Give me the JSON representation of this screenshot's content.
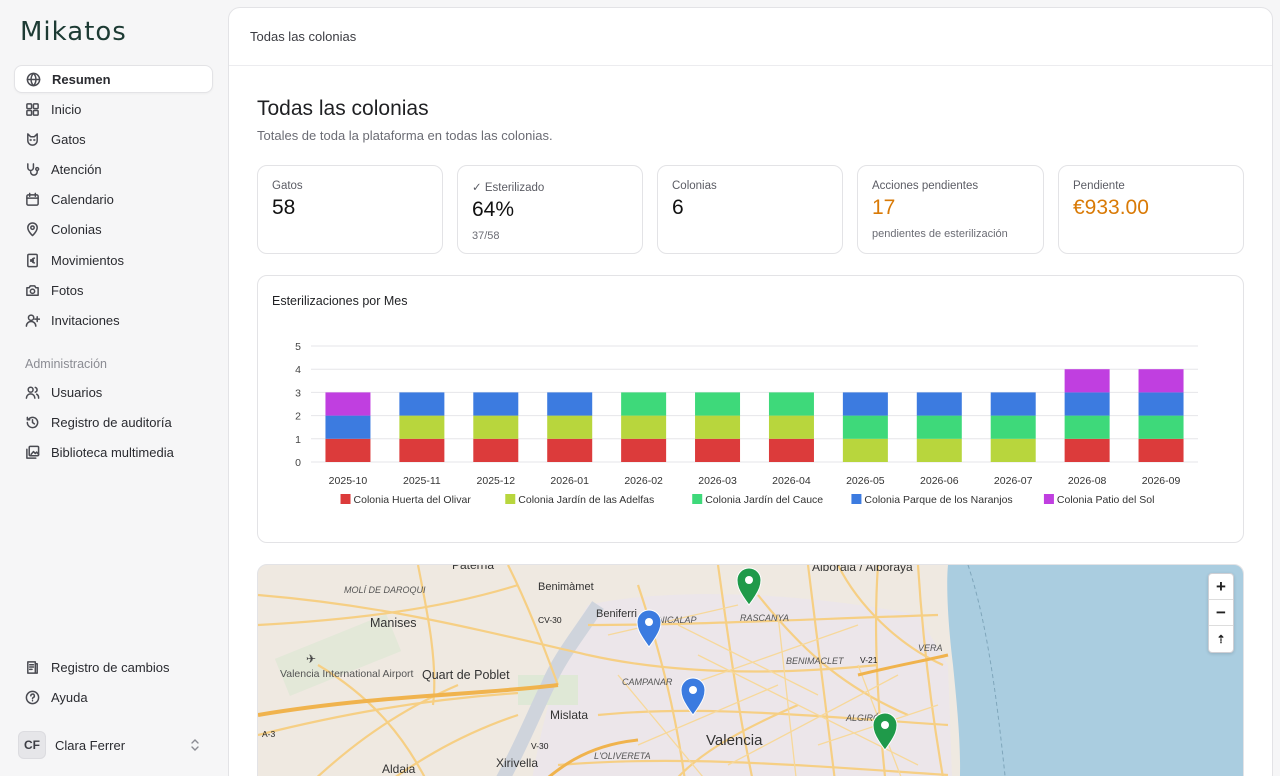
{
  "app": {
    "logo": "Mikatos",
    "breadcrumb": "Todas las colonias"
  },
  "sidebar": {
    "items": [
      {
        "label": "Resumen",
        "icon": "globe-icon",
        "active": true
      },
      {
        "label": "Inicio",
        "icon": "grid-icon"
      },
      {
        "label": "Gatos",
        "icon": "cat-icon"
      },
      {
        "label": "Atención",
        "icon": "stethoscope-icon"
      },
      {
        "label": "Calendario",
        "icon": "calendar-icon"
      },
      {
        "label": "Colonias",
        "icon": "map-pin-icon"
      },
      {
        "label": "Movimientos",
        "icon": "euro-receipt-icon"
      },
      {
        "label": "Fotos",
        "icon": "camera-icon"
      },
      {
        "label": "Invitaciones",
        "icon": "user-plus-icon"
      }
    ],
    "admin_label": "Administración",
    "admin_items": [
      {
        "label": "Usuarios",
        "icon": "users-icon"
      },
      {
        "label": "Registro de auditoría",
        "icon": "history-icon"
      },
      {
        "label": "Biblioteca multimedia",
        "icon": "images-icon"
      }
    ],
    "bottom_items": [
      {
        "label": "Registro de cambios",
        "icon": "changelog-icon"
      },
      {
        "label": "Ayuda",
        "icon": "help-icon"
      }
    ],
    "user": {
      "initials": "CF",
      "name": "Clara Ferrer"
    }
  },
  "page": {
    "title": "Todas las colonias",
    "subtitle": "Totales de toda la plataforma en todas las colonias."
  },
  "stats": [
    {
      "label": "Gatos",
      "value": "58",
      "sub": ""
    },
    {
      "label": "✓ Esterilizado",
      "value": "64%",
      "sub": "37/58"
    },
    {
      "label": "Colonias",
      "value": "6",
      "sub": ""
    },
    {
      "label": "Acciones pendientes",
      "value": "17",
      "sub": "pendientes de esterilización",
      "accent": "#d97a06"
    },
    {
      "label": "Pendiente",
      "value": "€933.00",
      "sub": "",
      "accent": "#d97a06"
    }
  ],
  "chart_data": {
    "type": "bar",
    "stacked": true,
    "title": "Esterilizaciones por Mes",
    "categories": [
      "2025-10",
      "2025-11",
      "2025-12",
      "2026-01",
      "2026-02",
      "2026-03",
      "2026-04",
      "2026-05",
      "2026-06",
      "2026-07",
      "2026-08",
      "2026-09"
    ],
    "ylim": [
      0,
      5
    ],
    "yticks": [
      0,
      1,
      2,
      3,
      4,
      5
    ],
    "grid": true,
    "legend_position": "bottom",
    "series": [
      {
        "name": "Colonia Huerta del Olivar",
        "color": "#dc3b3b",
        "values": [
          1,
          1,
          1,
          1,
          1,
          1,
          1,
          0,
          0,
          0,
          1,
          1
        ]
      },
      {
        "name": "Colonia Jardín de las Adelfas",
        "color": "#b8d63d",
        "values": [
          0,
          1,
          1,
          1,
          1,
          1,
          1,
          1,
          1,
          1,
          0,
          0
        ]
      },
      {
        "name": "Colonia Jardín del Cauce",
        "color": "#3ed97a",
        "values": [
          0,
          0,
          0,
          0,
          1,
          1,
          1,
          1,
          1,
          1,
          1,
          1
        ]
      },
      {
        "name": "Colonia Parque de los Naranjos",
        "color": "#3c7be0",
        "values": [
          1,
          1,
          1,
          1,
          0,
          0,
          0,
          1,
          1,
          1,
          1,
          1
        ]
      },
      {
        "name": "Colonia Patio del Sol",
        "color": "#c03fe0",
        "values": [
          1,
          0,
          0,
          0,
          0,
          0,
          0,
          0,
          0,
          0,
          1,
          1
        ]
      }
    ]
  },
  "map": {
    "labels": [
      "Paterna",
      "Benimàmet",
      "Alboraia / Alboraya",
      "MOLÍ DE DAROQUI",
      "Manises",
      "CV-30",
      "Beniferri",
      "CAMPANAR",
      "RASCANYA",
      "Valencia International Airport",
      "Quart de Poblet",
      "BENIMACLET",
      "V-21",
      "VERA",
      "Mislata",
      "Valencia",
      "ALGIRÓS",
      "A-3",
      "V-30",
      "L'OLIVERETA",
      "Aldaia",
      "Xirivella",
      "NICALAP"
    ],
    "zoom_in": "+",
    "zoom_out": "−",
    "reset": "⇡"
  }
}
